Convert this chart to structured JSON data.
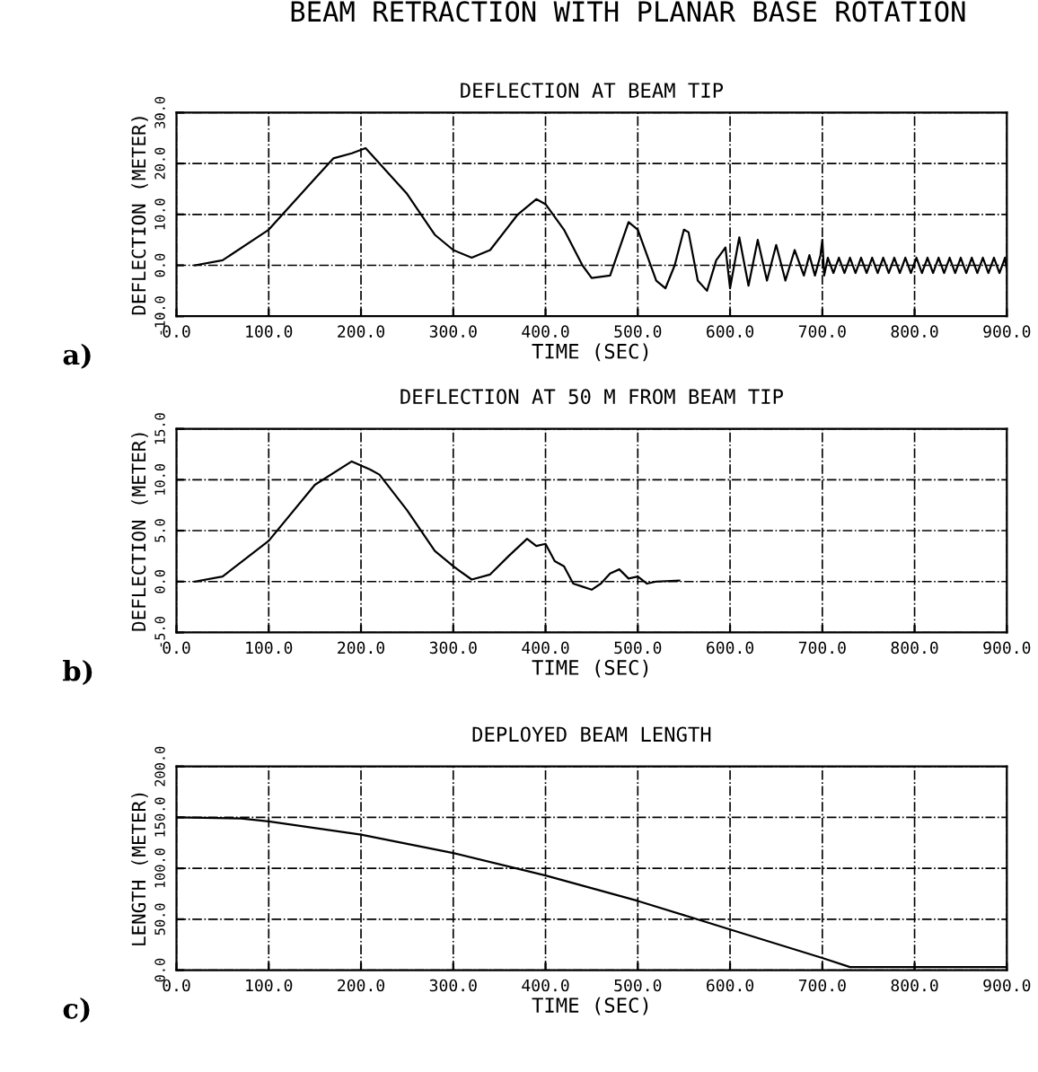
{
  "chart_data": [
    {
      "type": "line",
      "title": "BEAM RETRACTION WITH PLANAR BASE ROTATION",
      "subtitle": "DEFLECTION AT BEAM TIP",
      "xlabel": "TIME (SEC)",
      "ylabel": "DEFLECTION (METER)",
      "annotations": [
        "a)"
      ],
      "xlim": [
        0,
        900
      ],
      "ylim": [
        -10,
        30
      ],
      "xticks": [
        {
          "value": 0,
          "label": "0.0"
        },
        {
          "value": 100,
          "label": "100.0"
        },
        {
          "value": 200,
          "label": "200.0"
        },
        {
          "value": 300,
          "label": "300.0"
        },
        {
          "value": 400,
          "label": "400.0"
        },
        {
          "value": 500,
          "label": "500.0"
        },
        {
          "value": 600,
          "label": "600.0"
        },
        {
          "value": 700,
          "label": "700.0"
        },
        {
          "value": 800,
          "label": "800.0"
        },
        {
          "value": 900,
          "label": "900.0"
        }
      ],
      "yticks": [
        {
          "value": -10,
          "label": "-10.0"
        },
        {
          "value": 0,
          "label": "0.0"
        },
        {
          "value": 10,
          "label": "10.0"
        },
        {
          "value": 20,
          "label": "20.0"
        },
        {
          "value": 30,
          "label": "30.0"
        }
      ],
      "grid": true,
      "line_style": "solid",
      "series": [
        {
          "color": "#000000",
          "x": [
            20,
            50,
            100,
            150,
            170,
            190,
            205,
            220,
            250,
            280,
            300,
            320,
            340,
            370,
            390,
            400,
            420,
            440,
            450,
            470,
            490,
            500,
            520,
            530,
            540,
            550,
            555,
            565,
            575,
            585,
            595,
            600,
            610,
            620,
            630,
            640,
            650,
            660,
            670,
            680,
            686,
            692,
            698,
            700,
            702,
            706,
            712,
            718,
            724,
            730,
            736,
            742,
            748,
            754,
            760,
            766,
            772,
            778,
            784,
            790,
            796,
            802,
            808,
            814,
            820,
            826,
            832,
            838,
            844,
            850,
            856,
            862,
            868,
            874,
            880,
            886,
            892,
            898,
            900
          ],
          "values": [
            0,
            1,
            7,
            17,
            21,
            22,
            23,
            20,
            14,
            6,
            3,
            1.5,
            3,
            10,
            13,
            12,
            7,
            0,
            -2.5,
            -2,
            8.5,
            7,
            -3,
            -4.5,
            0,
            7,
            6.5,
            -3,
            -5,
            1,
            3.5,
            -4.5,
            5.5,
            -4,
            5,
            -3,
            4,
            -3,
            3,
            -2,
            2,
            -2,
            2,
            5,
            -2,
            1.5,
            -1.5,
            1.5,
            -1.5,
            1.5,
            -1.5,
            1.5,
            -1.5,
            1.5,
            -1.5,
            1.5,
            -1.5,
            1.5,
            -1.5,
            1.5,
            -1.5,
            1.5,
            -1.5,
            1.5,
            -1.5,
            1.5,
            -1.5,
            1.5,
            -1.5,
            1.5,
            -1.5,
            1.5,
            -1.5,
            1.5,
            -1.5,
            1.5,
            -1.5,
            1.5,
            -1
          ]
        }
      ]
    },
    {
      "type": "line",
      "title": "DEFLECTION AT 50 M FROM BEAM TIP",
      "xlabel": "TIME (SEC)",
      "ylabel": "DEFLECTION (METER)",
      "annotations": [
        "b)"
      ],
      "xlim": [
        0,
        900
      ],
      "ylim": [
        -5,
        15
      ],
      "xticks": [
        {
          "value": 0,
          "label": "0.0"
        },
        {
          "value": 100,
          "label": "100.0"
        },
        {
          "value": 200,
          "label": "200.0"
        },
        {
          "value": 300,
          "label": "300.0"
        },
        {
          "value": 400,
          "label": "400.0"
        },
        {
          "value": 500,
          "label": "500.0"
        },
        {
          "value": 600,
          "label": "600.0"
        },
        {
          "value": 700,
          "label": "700.0"
        },
        {
          "value": 800,
          "label": "800.0"
        },
        {
          "value": 900,
          "label": "900.0"
        }
      ],
      "yticks": [
        {
          "value": -5,
          "label": "-5.0"
        },
        {
          "value": 0,
          "label": "0.0"
        },
        {
          "value": 5,
          "label": "5.0"
        },
        {
          "value": 10,
          "label": "10.0"
        },
        {
          "value": 15,
          "label": "15.0"
        }
      ],
      "grid": true,
      "line_style": "solid",
      "series": [
        {
          "color": "#000000",
          "x": [
            20,
            50,
            100,
            150,
            190,
            210,
            220,
            250,
            280,
            300,
            320,
            340,
            360,
            380,
            390,
            400,
            410,
            420,
            430,
            440,
            450,
            460,
            470,
            480,
            490,
            500,
            510,
            520,
            545
          ],
          "values": [
            0,
            0.5,
            4,
            9.5,
            11.8,
            11,
            10.5,
            7,
            3,
            1.5,
            0.2,
            0.7,
            2.5,
            4.2,
            3.5,
            3.7,
            2,
            1.5,
            -0.2,
            -0.5,
            -0.8,
            -0.2,
            0.8,
            1.2,
            0.3,
            0.5,
            -0.2,
            0,
            0.1
          ]
        }
      ]
    },
    {
      "type": "line",
      "title": "DEPLOYED BEAM LENGTH",
      "xlabel": "TIME (SEC)",
      "ylabel": "LENGTH (METER)",
      "annotations": [
        "c)"
      ],
      "xlim": [
        0,
        900
      ],
      "ylim": [
        0,
        200
      ],
      "xticks": [
        {
          "value": 0,
          "label": "0.0"
        },
        {
          "value": 100,
          "label": "100.0"
        },
        {
          "value": 200,
          "label": "200.0"
        },
        {
          "value": 300,
          "label": "300.0"
        },
        {
          "value": 400,
          "label": "400.0"
        },
        {
          "value": 500,
          "label": "500.0"
        },
        {
          "value": 600,
          "label": "600.0"
        },
        {
          "value": 700,
          "label": "700.0"
        },
        {
          "value": 800,
          "label": "800.0"
        },
        {
          "value": 900,
          "label": "900.0"
        }
      ],
      "yticks": [
        {
          "value": 0,
          "label": "0.0"
        },
        {
          "value": 50,
          "label": "50.0"
        },
        {
          "value": 100,
          "label": "100.0"
        },
        {
          "value": 150,
          "label": "150.0"
        },
        {
          "value": 200,
          "label": "200.0"
        }
      ],
      "grid": true,
      "line_style": "solid",
      "series": [
        {
          "color": "#000000",
          "x": [
            0,
            70,
            100,
            200,
            300,
            400,
            500,
            600,
            700,
            730,
            900
          ],
          "values": [
            150,
            149,
            146,
            133,
            115,
            93,
            68,
            40,
            12,
            3,
            3
          ]
        }
      ]
    }
  ]
}
